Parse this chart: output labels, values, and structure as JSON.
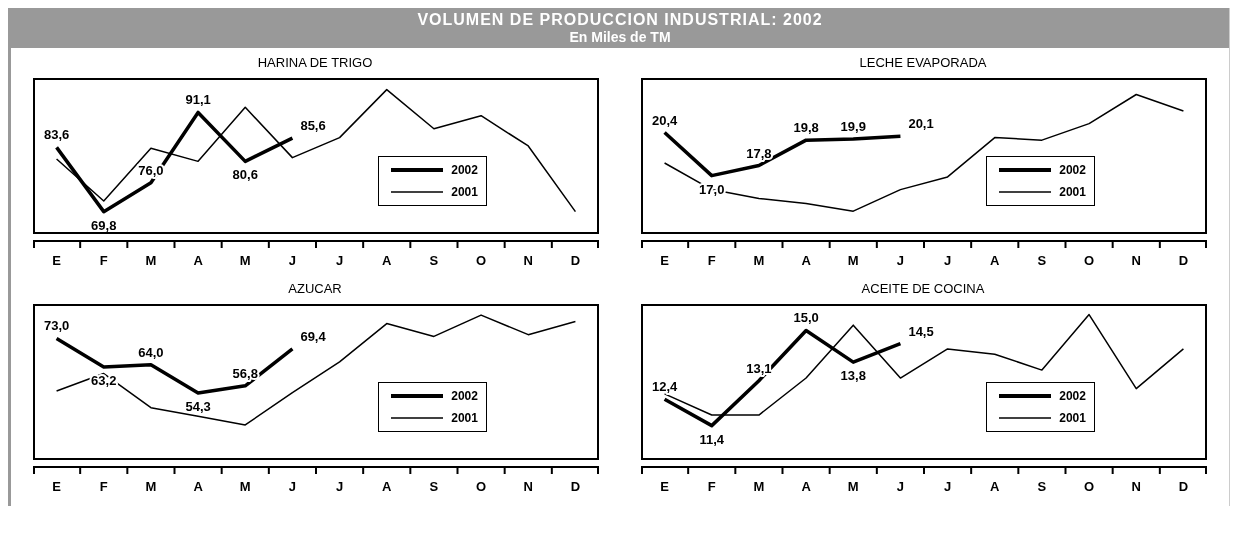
{
  "chart_data": [
    {
      "type": "other",
      "title": "VOLUMEN DE PRODUCCION INDUSTRIAL: 2002",
      "subtitle": "En Miles de TM"
    },
    {
      "type": "line",
      "title": "HARINA DE TRIGO",
      "categories": [
        "E",
        "F",
        "M",
        "A",
        "M",
        "J",
        "J",
        "A",
        "S",
        "O",
        "N",
        "D"
      ],
      "ylim": [
        65,
        98.5
      ],
      "tick_labels": "x",
      "legend": "bottom right",
      "marker": "none",
      "grid": false,
      "series": [
        {
          "name": "2002",
          "color": "#000000",
          "values": [
            83.6,
            69.8,
            76.0,
            91.1,
            80.6,
            85.6,
            null,
            null,
            null,
            null,
            null,
            null
          ],
          "value_labels": [
            "83,6",
            "69,8",
            "76,0",
            "91,1",
            "80,6",
            "85,6",
            null,
            null,
            null,
            null,
            null,
            null
          ]
        },
        {
          "name": "2001",
          "color": "#000000",
          "values": [
            81.1,
            72.1,
            83.4,
            80.6,
            92.2,
            81.4,
            85.7,
            96.0,
            87.6,
            90.4,
            83.9,
            69.8
          ]
        }
      ]
    },
    {
      "type": "line",
      "title": "LECHE EVAPORADA",
      "categories": [
        "E",
        "F",
        "M",
        "A",
        "M",
        "J",
        "J",
        "A",
        "S",
        "O",
        "N",
        "D"
      ],
      "ylim": [
        12.4,
        24.7
      ],
      "tick_labels": "x",
      "legend": "bottom right",
      "marker": "none",
      "grid": false,
      "series": [
        {
          "name": "2002",
          "color": "#000000",
          "values": [
            20.4,
            17.0,
            17.8,
            19.8,
            19.9,
            20.1,
            null,
            null,
            null,
            null,
            null,
            null
          ],
          "value_labels": [
            "20,4",
            "17,0",
            "17,8",
            "19,8",
            "19,9",
            "20,1",
            null,
            null,
            null,
            null,
            null,
            null
          ]
        },
        {
          "name": "2001",
          "color": "#000000",
          "values": [
            18.0,
            15.9,
            15.2,
            14.8,
            14.2,
            15.9,
            16.9,
            20.0,
            19.8,
            21.1,
            23.4,
            22.1
          ]
        }
      ]
    },
    {
      "type": "line",
      "title": "AZUCAR",
      "categories": [
        "E",
        "F",
        "M",
        "A",
        "M",
        "J",
        "J",
        "A",
        "S",
        "O",
        "N",
        "D"
      ],
      "ylim": [
        31.4,
        84.8
      ],
      "tick_labels": "x",
      "legend": "bottom right",
      "marker": "none",
      "grid": false,
      "series": [
        {
          "name": "2002",
          "color": "#000000",
          "values": [
            73.0,
            63.2,
            64.0,
            54.3,
            56.8,
            69.4,
            null,
            null,
            null,
            null,
            null,
            null
          ],
          "value_labels": [
            "73,0",
            "63,2",
            "64,0",
            "54,3",
            "56,8",
            "69,4",
            null,
            null,
            null,
            null,
            null,
            null
          ]
        },
        {
          "name": "2001",
          "color": "#000000",
          "values": [
            55.0,
            61.0,
            49.3,
            46.4,
            43.4,
            54.5,
            65.0,
            78.1,
            73.7,
            81.0,
            74.3,
            78.8
          ]
        }
      ]
    },
    {
      "type": "line",
      "title": "ACEITE DE COCINA",
      "categories": [
        "E",
        "F",
        "M",
        "A",
        "M",
        "J",
        "J",
        "A",
        "S",
        "O",
        "N",
        "D"
      ],
      "ylim": [
        10.1,
        16.0
      ],
      "tick_labels": "x",
      "legend": "bottom right",
      "marker": "none",
      "grid": false,
      "series": [
        {
          "name": "2002",
          "color": "#000000",
          "values": [
            12.4,
            11.4,
            13.1,
            15.0,
            13.8,
            14.5,
            null,
            null,
            null,
            null,
            null,
            null
          ],
          "value_labels": [
            "12,4",
            "11,4",
            "13,1",
            "15,0",
            "13,8",
            "14,5",
            null,
            null,
            null,
            null,
            null,
            null
          ]
        },
        {
          "name": "2001",
          "color": "#000000",
          "values": [
            12.6,
            11.8,
            11.8,
            13.2,
            15.2,
            13.2,
            14.3,
            14.1,
            13.5,
            15.6,
            12.8,
            14.3
          ]
        }
      ]
    }
  ]
}
